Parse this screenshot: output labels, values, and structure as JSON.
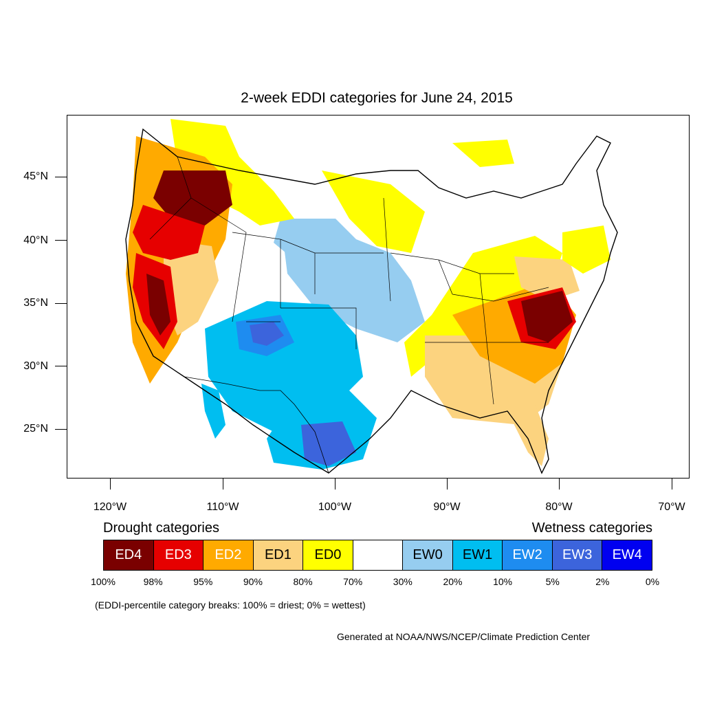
{
  "title": "2-week EDDI categories for June 24, 2015",
  "map": {
    "projection": "lat-lon",
    "lat_range": [
      21,
      50
    ],
    "lon_range": [
      -124,
      -68.5
    ],
    "lat_labels": [
      "45°N",
      "40°N",
      "35°N",
      "30°N",
      "25°N"
    ],
    "lon_labels": [
      "120°W",
      "110°W",
      "100°W",
      "90°W",
      "80°W",
      "70°W"
    ],
    "regions": [
      {
        "name": "Pacific Northwest interior",
        "category": "ED4"
      },
      {
        "name": "California Sierra",
        "category": "ED4"
      },
      {
        "name": "Southeast Atlantic states",
        "category": "ED4"
      },
      {
        "name": "Great Basin",
        "category": "ED2"
      },
      {
        "name": "Southeast coastal plain",
        "category": "ED1"
      },
      {
        "name": "Ohio Valley",
        "category": "ED0"
      },
      {
        "name": "Northern Plains",
        "category": "ED0"
      },
      {
        "name": "Four Corners",
        "category": "EW3"
      },
      {
        "name": "Southern Plains",
        "category": "EW1"
      },
      {
        "name": "South Texas",
        "category": "EW3"
      },
      {
        "name": "Central Plains",
        "category": "EW0"
      }
    ]
  },
  "legend": {
    "drought_label": "Drought categories",
    "wetness_label": "Wetness categories",
    "categories": [
      {
        "label": "ED4",
        "color": "#7a0000",
        "text_color": "#ffffff"
      },
      {
        "label": "ED3",
        "color": "#e60000",
        "text_color": "#ffffff"
      },
      {
        "label": "ED2",
        "color": "#ffaa00",
        "text_color": "#ffffff"
      },
      {
        "label": "ED1",
        "color": "#fcd37f",
        "text_color": "#000000"
      },
      {
        "label": "ED0",
        "color": "#ffff00",
        "text_color": "#000000"
      },
      {
        "label": "",
        "color": "#ffffff",
        "text_color": "#000000"
      },
      {
        "label": "EW0",
        "color": "#96cdf0",
        "text_color": "#000000"
      },
      {
        "label": "EW1",
        "color": "#00bef0",
        "text_color": "#000000"
      },
      {
        "label": "EW2",
        "color": "#1e8cf0",
        "text_color": "#ffffff"
      },
      {
        "label": "EW3",
        "color": "#3c64dc",
        "text_color": "#ffffff"
      },
      {
        "label": "EW4",
        "color": "#0000f0",
        "text_color": "#ffffff"
      }
    ],
    "percent_breaks": [
      "100%",
      "98%",
      "95%",
      "90%",
      "80%",
      "70%",
      "30%",
      "20%",
      "10%",
      "5%",
      "2%",
      "0%"
    ]
  },
  "note": "(EDDI-percentile category breaks: 100% = driest; 0% = wettest)",
  "credit": "Generated at NOAA/NWS/NCEP/Climate Prediction Center"
}
